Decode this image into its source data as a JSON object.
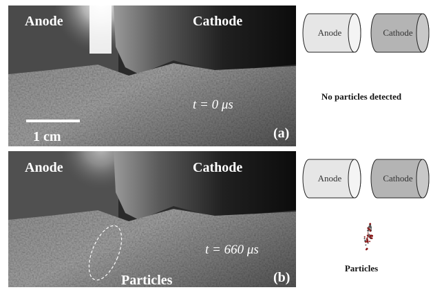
{
  "panels": [
    {
      "photo": {
        "anode": "Anode",
        "cathode": "Cathode",
        "time": "t = 0 μs",
        "scale_bar": "1 cm",
        "label": "(a)"
      },
      "diagram": {
        "anode": "Anode",
        "cathode": "Cathode",
        "caption": "No particles detected"
      }
    },
    {
      "photo": {
        "anode": "Anode",
        "cathode": "Cathode",
        "time": "t = 660 μs",
        "particles": "Particles",
        "label": "(b)"
      },
      "diagram": {
        "anode": "Anode",
        "cathode": "Cathode",
        "caption": "Particles"
      }
    }
  ]
}
